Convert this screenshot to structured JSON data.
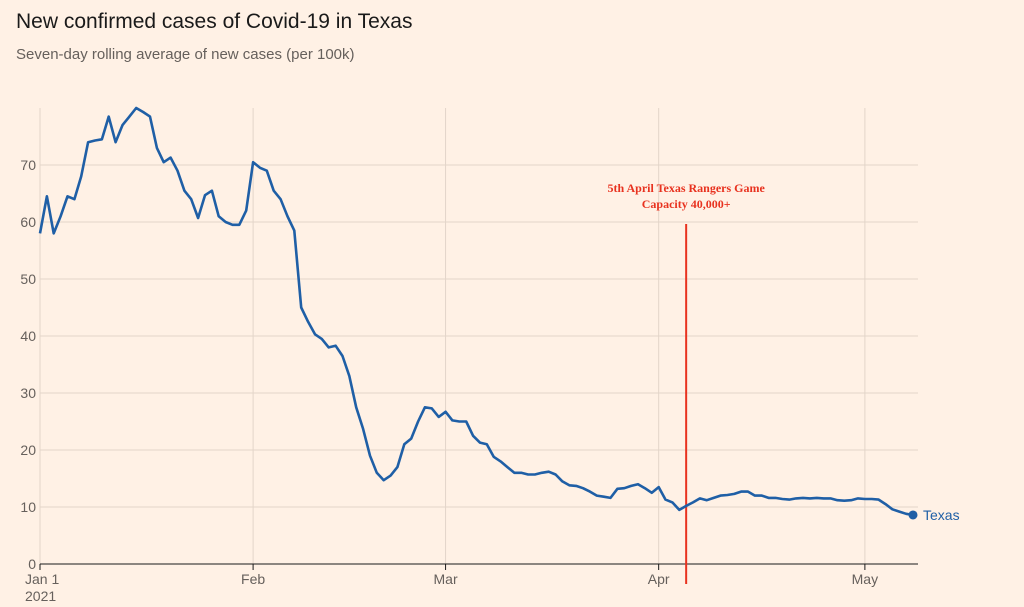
{
  "header": {
    "title": "New confirmed cases of Covid-19 in Texas",
    "subtitle": "Seven-day rolling average of new cases (per 100k)"
  },
  "colors": {
    "background": "#fff1e5",
    "series": "#1f5fa6",
    "annotation": "#e8321f",
    "grid": "#e3d5c9"
  },
  "chart_data": {
    "type": "line",
    "title": "New confirmed cases of Covid-19 in Texas",
    "subtitle": "Seven-day rolling average of new cases (per 100k)",
    "ylim": [
      0,
      80
    ],
    "y_ticks": [
      0,
      10,
      20,
      30,
      40,
      50,
      60,
      70
    ],
    "x_ticks": [
      {
        "date": "2021-01-01",
        "label": "Jan 1",
        "sublabel": "2021"
      },
      {
        "date": "2021-02-01",
        "label": "Feb",
        "sublabel": ""
      },
      {
        "date": "2021-03-01",
        "label": "Mar",
        "sublabel": ""
      },
      {
        "date": "2021-04-01",
        "label": "Apr",
        "sublabel": ""
      },
      {
        "date": "2021-05-01",
        "label": "May",
        "sublabel": ""
      }
    ],
    "xlim": [
      "2021-01-01",
      "2021-05-08"
    ],
    "grid": true,
    "series": [
      {
        "name": "Texas",
        "points": [
          [
            "2021-01-01",
            58
          ],
          [
            "2021-01-02",
            64.5
          ],
          [
            "2021-01-03",
            58
          ],
          [
            "2021-01-04",
            61
          ],
          [
            "2021-01-05",
            64.5
          ],
          [
            "2021-01-06",
            64
          ],
          [
            "2021-01-07",
            68
          ],
          [
            "2021-01-08",
            74
          ],
          [
            "2021-01-09",
            74.3
          ],
          [
            "2021-01-10",
            74.5
          ],
          [
            "2021-01-11",
            78.5
          ],
          [
            "2021-01-12",
            74
          ],
          [
            "2021-01-13",
            77
          ],
          [
            "2021-01-14",
            78.5
          ],
          [
            "2021-01-15",
            80
          ],
          [
            "2021-01-16",
            79.3
          ],
          [
            "2021-01-17",
            78.5
          ],
          [
            "2021-01-18",
            73
          ],
          [
            "2021-01-19",
            70.5
          ],
          [
            "2021-01-20",
            71.3
          ],
          [
            "2021-01-21",
            69
          ],
          [
            "2021-01-22",
            65.5
          ],
          [
            "2021-01-23",
            64
          ],
          [
            "2021-01-24",
            60.7
          ],
          [
            "2021-01-25",
            64.7
          ],
          [
            "2021-01-26",
            65.5
          ],
          [
            "2021-01-27",
            61
          ],
          [
            "2021-01-28",
            60
          ],
          [
            "2021-01-29",
            59.5
          ],
          [
            "2021-01-30",
            59.5
          ],
          [
            "2021-01-31",
            62
          ],
          [
            "2021-02-01",
            70.5
          ],
          [
            "2021-02-02",
            69.5
          ],
          [
            "2021-02-03",
            69
          ],
          [
            "2021-02-04",
            65.5
          ],
          [
            "2021-02-05",
            64
          ],
          [
            "2021-02-06",
            61
          ],
          [
            "2021-02-07",
            58.5
          ],
          [
            "2021-02-08",
            45
          ],
          [
            "2021-02-09",
            42.5
          ],
          [
            "2021-02-10",
            40.3
          ],
          [
            "2021-02-11",
            39.5
          ],
          [
            "2021-02-12",
            38
          ],
          [
            "2021-02-13",
            38.3
          ],
          [
            "2021-02-14",
            36.5
          ],
          [
            "2021-02-15",
            33
          ],
          [
            "2021-02-16",
            27.5
          ],
          [
            "2021-02-17",
            23.7
          ],
          [
            "2021-02-18",
            19
          ],
          [
            "2021-02-19",
            16
          ],
          [
            "2021-02-20",
            14.7
          ],
          [
            "2021-02-21",
            15.5
          ],
          [
            "2021-02-22",
            17
          ],
          [
            "2021-02-23",
            21
          ],
          [
            "2021-02-24",
            22
          ],
          [
            "2021-02-25",
            25
          ],
          [
            "2021-02-26",
            27.5
          ],
          [
            "2021-02-27",
            27.3
          ],
          [
            "2021-02-28",
            25.8
          ],
          [
            "2021-03-01",
            26.7
          ],
          [
            "2021-03-02",
            25.2
          ],
          [
            "2021-03-03",
            25
          ],
          [
            "2021-03-04",
            25
          ],
          [
            "2021-03-05",
            22.5
          ],
          [
            "2021-03-06",
            21.3
          ],
          [
            "2021-03-07",
            21
          ],
          [
            "2021-03-08",
            18.8
          ],
          [
            "2021-03-09",
            18
          ],
          [
            "2021-03-10",
            17
          ],
          [
            "2021-03-11",
            16
          ],
          [
            "2021-03-12",
            16
          ],
          [
            "2021-03-13",
            15.7
          ],
          [
            "2021-03-14",
            15.7
          ],
          [
            "2021-03-15",
            16
          ],
          [
            "2021-03-16",
            16.2
          ],
          [
            "2021-03-17",
            15.7
          ],
          [
            "2021-03-18",
            14.5
          ],
          [
            "2021-03-19",
            13.8
          ],
          [
            "2021-03-20",
            13.7
          ],
          [
            "2021-03-21",
            13.3
          ],
          [
            "2021-03-22",
            12.7
          ],
          [
            "2021-03-23",
            12
          ],
          [
            "2021-03-24",
            11.8
          ],
          [
            "2021-03-25",
            11.6
          ],
          [
            "2021-03-26",
            13.2
          ],
          [
            "2021-03-27",
            13.3
          ],
          [
            "2021-03-28",
            13.7
          ],
          [
            "2021-03-29",
            14
          ],
          [
            "2021-03-30",
            13.3
          ],
          [
            "2021-03-31",
            12.5
          ],
          [
            "2021-04-01",
            13.5
          ],
          [
            "2021-04-02",
            11.3
          ],
          [
            "2021-04-03",
            10.8
          ],
          [
            "2021-04-04",
            9.5
          ],
          [
            "2021-04-05",
            10.2
          ],
          [
            "2021-04-06",
            10.8
          ],
          [
            "2021-04-07",
            11.5
          ],
          [
            "2021-04-08",
            11.2
          ],
          [
            "2021-04-09",
            11.6
          ],
          [
            "2021-04-10",
            12
          ],
          [
            "2021-04-11",
            12.1
          ],
          [
            "2021-04-12",
            12.3
          ],
          [
            "2021-04-13",
            12.7
          ],
          [
            "2021-04-14",
            12.7
          ],
          [
            "2021-04-15",
            12
          ],
          [
            "2021-04-16",
            12
          ],
          [
            "2021-04-17",
            11.6
          ],
          [
            "2021-04-18",
            11.6
          ],
          [
            "2021-04-19",
            11.4
          ],
          [
            "2021-04-20",
            11.3
          ],
          [
            "2021-04-21",
            11.5
          ],
          [
            "2021-04-22",
            11.6
          ],
          [
            "2021-04-23",
            11.5
          ],
          [
            "2021-04-24",
            11.6
          ],
          [
            "2021-04-25",
            11.5
          ],
          [
            "2021-04-26",
            11.5
          ],
          [
            "2021-04-27",
            11.2
          ],
          [
            "2021-04-28",
            11.1
          ],
          [
            "2021-04-29",
            11.2
          ],
          [
            "2021-04-30",
            11.5
          ],
          [
            "2021-05-01",
            11.4
          ],
          [
            "2021-05-02",
            11.4
          ],
          [
            "2021-05-03",
            11.3
          ],
          [
            "2021-05-04",
            10.5
          ],
          [
            "2021-05-05",
            9.6
          ],
          [
            "2021-05-06",
            9.2
          ],
          [
            "2021-05-07",
            8.8
          ],
          [
            "2021-05-08",
            8.6
          ]
        ]
      }
    ],
    "series_label": "Texas",
    "annotation": {
      "date": "2021-04-05",
      "line1": "5th April Texas Rangers Game",
      "line2": "Capacity 40,000+"
    }
  }
}
